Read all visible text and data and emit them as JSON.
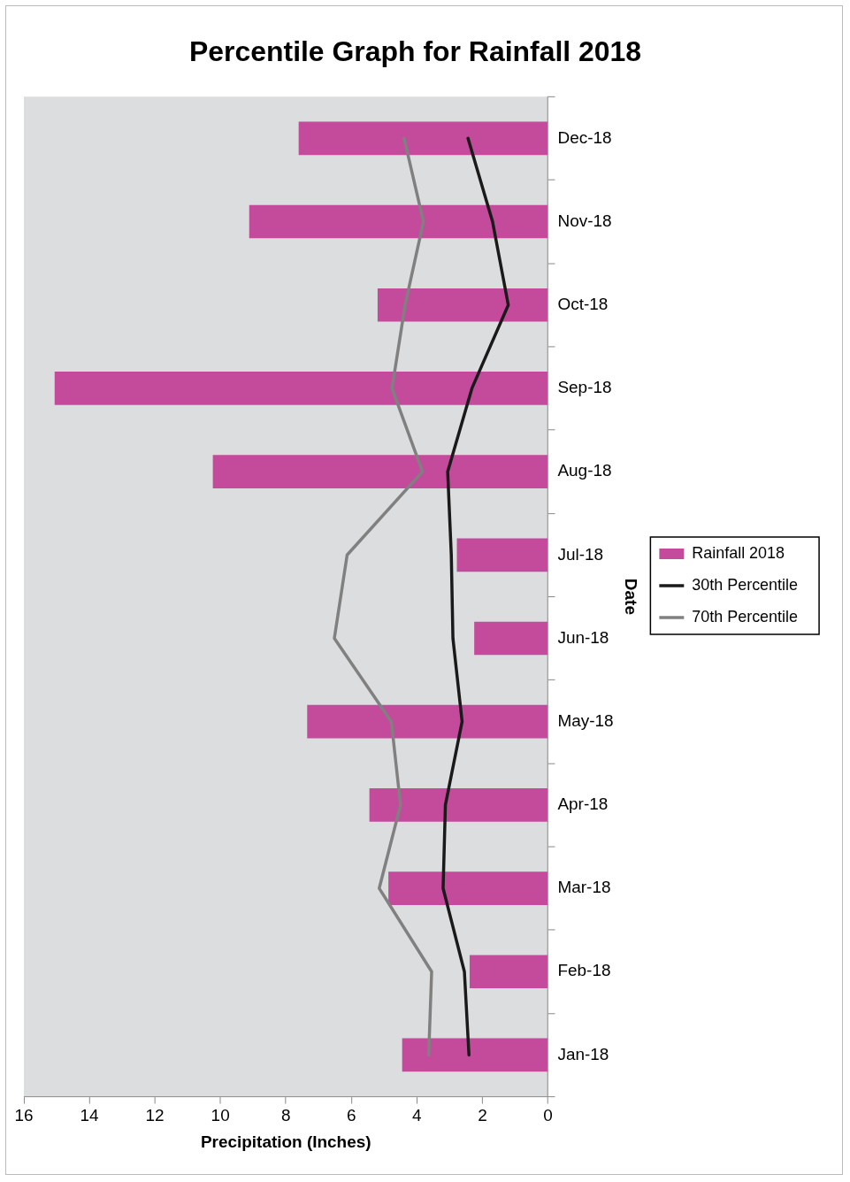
{
  "chart_data": {
    "type": "bar",
    "orientation": "horizontal",
    "title": "Percentile Graph for Rainfall 2018",
    "xlabel": "Precipitation (Inches)",
    "ylabel": "Date",
    "categories": [
      "Dec-18",
      "Nov-18",
      "Oct-18",
      "Sep-18",
      "Aug-18",
      "Jul-18",
      "Jun-18",
      "May-18",
      "Apr-18",
      "Mar-18",
      "Feb-18",
      "Jan-18"
    ],
    "series": [
      {
        "name": "Rainfall 2018",
        "color": "#c44a9c",
        "values": [
          7.61,
          9.12,
          5.2,
          15.06,
          10.23,
          2.78,
          2.25,
          7.35,
          5.45,
          4.87,
          2.39,
          4.45
        ]
      },
      {
        "name": "30th Percentile",
        "type": "line",
        "color": "#1a1a1a",
        "values": [
          2.44,
          1.69,
          1.21,
          2.32,
          3.06,
          2.95,
          2.9,
          2.62,
          3.13,
          3.2,
          2.55,
          2.41
        ]
      },
      {
        "name": "70th Percentile",
        "type": "line",
        "color": "#808080",
        "values": [
          4.39,
          3.8,
          4.36,
          4.76,
          3.83,
          6.13,
          6.52,
          4.78,
          4.5,
          5.15,
          3.55,
          3.64
        ]
      }
    ],
    "xlim": [
      16,
      0
    ],
    "xticks": [
      16,
      14,
      12,
      10,
      8,
      6,
      4,
      2,
      0
    ],
    "grid": false,
    "legend": "right"
  }
}
